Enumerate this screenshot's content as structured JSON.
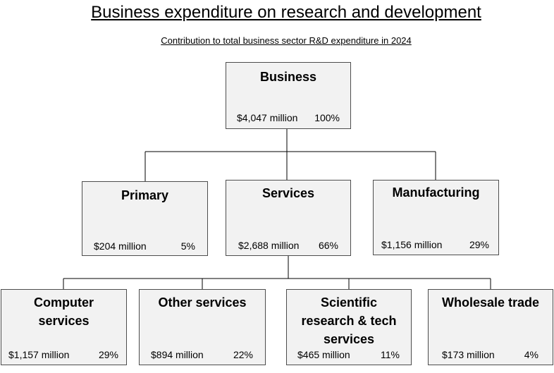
{
  "title": "Business expenditure on research and development",
  "subtitle": "Contribution to total business sector R&D expenditure in 2024",
  "nodes": {
    "business": {
      "name": "Business",
      "amount": "$4,047 million",
      "percent": "100%"
    },
    "primary": {
      "name": "Primary",
      "amount": "$204 million",
      "percent": "5%"
    },
    "services": {
      "name": "Services",
      "amount": "$2,688 million",
      "percent": "66%"
    },
    "manufacturing": {
      "name": "Manufacturing",
      "amount": "$1,156 million",
      "percent": "29%"
    },
    "computer": {
      "name": "Computer services",
      "amount": "$1,157 million",
      "percent": "29%"
    },
    "other": {
      "name": "Other services",
      "amount": "$894 million",
      "percent": "22%"
    },
    "scientific": {
      "name": "Scientific research & tech services",
      "amount": "$465 million",
      "percent": "11%"
    },
    "wholesale": {
      "name": "Wholesale trade",
      "amount": "$173 million",
      "percent": "4%"
    }
  }
}
